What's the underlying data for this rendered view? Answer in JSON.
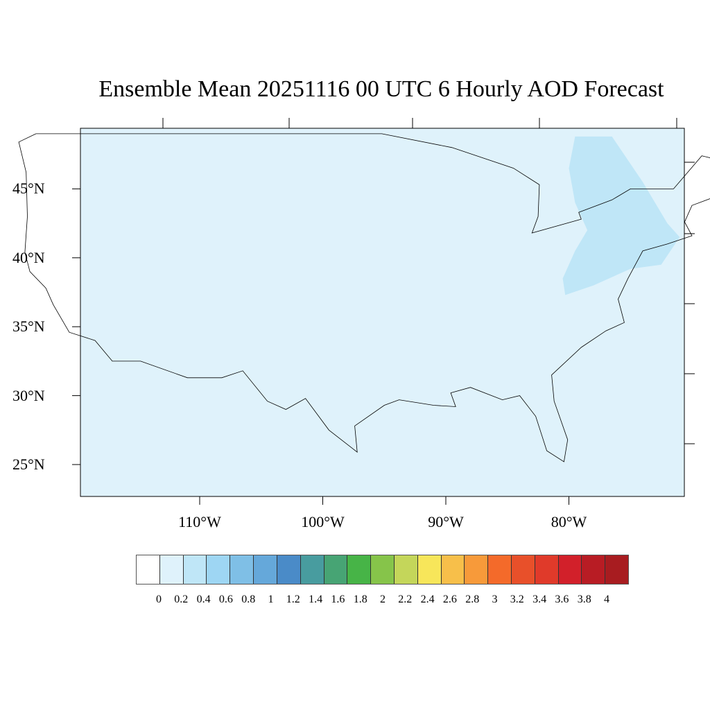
{
  "title": "Ensemble Mean 20251116 00 UTC 6 Hourly AOD Forecast",
  "map": {
    "background_color": "#dff2fb",
    "aod_patch_color": "#bfe6f7",
    "aod_patch_region": "northeastern US / southern Quebec",
    "lat_labels": [
      "45°N",
      "40°N",
      "35°N",
      "30°N",
      "25°N"
    ],
    "lat_values": [
      45,
      40,
      35,
      30,
      25
    ],
    "lon_labels": [
      "110°W",
      "100°W",
      "90°W",
      "80°W"
    ],
    "lon_values": [
      -110,
      -100,
      -90,
      -80
    ]
  },
  "colorbar": {
    "labels": [
      "0",
      "0.2",
      "0.4",
      "0.6",
      "0.8",
      "1",
      "1.2",
      "1.4",
      "1.6",
      "1.8",
      "2",
      "2.2",
      "2.4",
      "2.6",
      "2.8",
      "3",
      "3.2",
      "3.4",
      "3.6",
      "3.8",
      "4"
    ],
    "colors": [
      "#ffffff",
      "#dff2fb",
      "#bfe6f7",
      "#9ed6f3",
      "#7fbfe6",
      "#65a8da",
      "#4a8bc8",
      "#489c9f",
      "#47a474",
      "#47b447",
      "#86c44a",
      "#c4d65a",
      "#f7e65a",
      "#f7bf4a",
      "#f79a3a",
      "#f46a2a",
      "#e8502a",
      "#e03a2a",
      "#d2202a",
      "#b81c24",
      "#a81c20",
      "#8e161a"
    ]
  }
}
